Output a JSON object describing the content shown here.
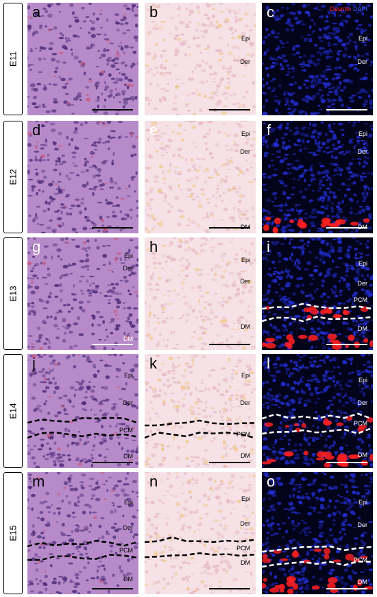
{
  "legend": {
    "desmin": "Desmin",
    "dapi": "DAPI"
  },
  "stains": {
    "he": {
      "color_light": "#b78bc9",
      "color_dark": "#6a3f93",
      "nuclei": "#4a2878"
    },
    "sirius": {
      "color_light": "#f5e1e6",
      "color_dark": "#e6b8c2",
      "accent": "#f0c98b"
    },
    "fluor": {
      "background": "#03031a",
      "dapi": "#2430d8",
      "desmin": "#ff2020"
    }
  },
  "rows": [
    {
      "stage": "E11",
      "panels": [
        {
          "letter": "a",
          "tags": []
        },
        {
          "letter": "b",
          "tags": [
            "Epi",
            "Der"
          ]
        },
        {
          "letter": "c",
          "tags": [
            "Epi",
            "Der"
          ]
        }
      ]
    },
    {
      "stage": "E12",
      "panels": [
        {
          "letter": "d",
          "tags": []
        },
        {
          "letter": "e",
          "tags": [
            "Epi",
            "Der",
            "DM"
          ]
        },
        {
          "letter": "f",
          "tags": [
            "Epi",
            "Der",
            "DM"
          ]
        }
      ]
    },
    {
      "stage": "E13",
      "panels": [
        {
          "letter": "g",
          "tags": [
            "Epi",
            "Der",
            "DM"
          ]
        },
        {
          "letter": "h",
          "tags": [
            "Epi",
            "Der",
            "DM"
          ]
        },
        {
          "letter": "i",
          "tags": [
            "Epi",
            "Der",
            "PCM",
            "DM"
          ]
        }
      ]
    },
    {
      "stage": "E14",
      "panels": [
        {
          "letter": "j",
          "tags": [
            "Epi",
            "Der",
            "PCM",
            "DM"
          ]
        },
        {
          "letter": "k",
          "tags": [
            "Epi",
            "Der",
            "PCM",
            "DM"
          ]
        },
        {
          "letter": "l",
          "tags": [
            "Epi",
            "Der",
            "PCM",
            "DM"
          ]
        }
      ]
    },
    {
      "stage": "E15",
      "panels": [
        {
          "letter": "m",
          "tags": [
            "Epi",
            "Der",
            "PCM",
            "DM"
          ]
        },
        {
          "letter": "n",
          "tags": [
            "Epi",
            "Der",
            "PCM",
            "DM"
          ]
        },
        {
          "letter": "o",
          "tags": [
            "Epi",
            "Der",
            "PCM",
            "DM"
          ]
        }
      ]
    }
  ]
}
